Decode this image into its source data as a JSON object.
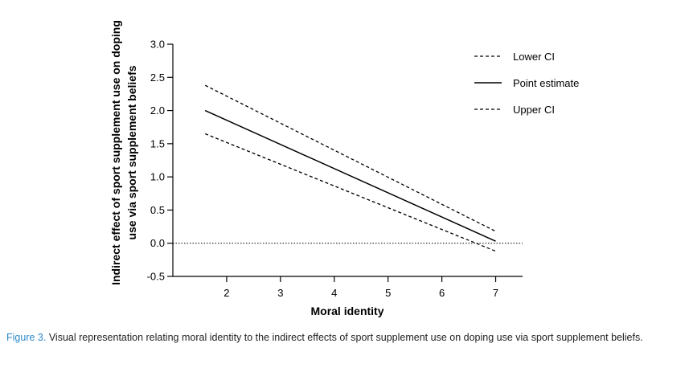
{
  "colors": {
    "line": "#000000",
    "caption_label": "#2d8ac9",
    "caption_text": "#222222"
  },
  "chart_data": {
    "type": "line",
    "title": "",
    "xlabel": "Moral identity",
    "ylabel_line1": "Indirect effect of sport supplement use on doping",
    "ylabel_line2": "use via sport supplement beliefs",
    "xlim": [
      1.0,
      7.5
    ],
    "ylim": [
      -0.5,
      3.0
    ],
    "xticks": [
      2,
      3,
      4,
      5,
      6,
      7
    ],
    "xtick_labels": [
      "2",
      "3",
      "4",
      "5",
      "6",
      "7"
    ],
    "yticks": [
      -0.5,
      0.0,
      0.5,
      1.0,
      1.5,
      2.0,
      2.5,
      3.0
    ],
    "ytick_labels": [
      "-0.5",
      "0.0",
      "0.5",
      "1.0",
      "1.5",
      "2.0",
      "2.5",
      "3.0"
    ],
    "reference_line": {
      "y": 0.0,
      "style": "dotted"
    },
    "legend_position": "top-right",
    "series": [
      {
        "name": "Lower CI",
        "style": "dashed",
        "x": [
          1.6,
          7.0
        ],
        "y": [
          1.65,
          -0.12
        ]
      },
      {
        "name": "Point estimate",
        "style": "solid",
        "x": [
          1.6,
          7.0
        ],
        "y": [
          2.0,
          0.03
        ]
      },
      {
        "name": "Upper CI",
        "style": "dashed",
        "x": [
          1.6,
          7.0
        ],
        "y": [
          2.38,
          0.18
        ]
      }
    ]
  },
  "caption": {
    "label": "Figure 3.",
    "text": " Visual representation relating moral identity to the indirect effects of sport supplement use on doping use via sport supplement beliefs."
  }
}
